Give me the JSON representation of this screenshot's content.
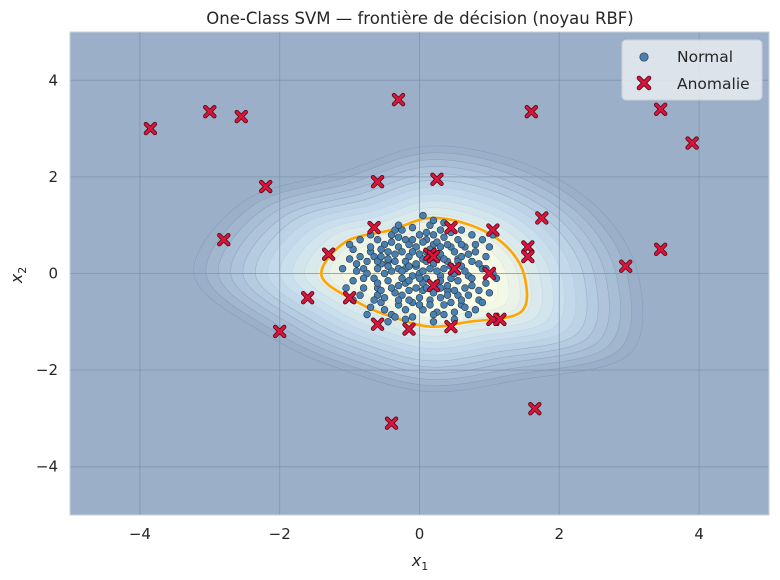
{
  "chart_data": {
    "type": "scatter",
    "title": "One-Class SVM — frontière de décision (noyau RBF)",
    "xlabel": "x",
    "xlabel_sub": "1",
    "ylabel": "x",
    "ylabel_sub": "2",
    "xlim": [
      -5,
      5
    ],
    "ylim": [
      -5,
      5
    ],
    "xticks": [
      -4,
      -2,
      0,
      2,
      4
    ],
    "yticks": [
      -4,
      -2,
      0,
      2,
      4
    ],
    "xtick_labels": [
      "−4",
      "−2",
      "0",
      "2",
      "4"
    ],
    "ytick_labels": [
      "−4",
      "−2",
      "0",
      "2",
      "4"
    ],
    "grid": true,
    "legend_position": "top-right",
    "colors": {
      "background": "#9bb0c8",
      "grid": "#7f92ab",
      "normal": "#4a80b0",
      "normal_edge": "#27384a",
      "anomaly": "#dc143c",
      "anomaly_edge": "#4a0a14",
      "boundary": "#ffa500",
      "contour_outer": "#9bb0c8",
      "contour_inner": "#fbfde6"
    },
    "boundary": {
      "center": [
        0.15,
        -0.05
      ],
      "angles_deg": [
        0,
        30,
        60,
        90,
        120,
        150,
        180,
        210,
        240,
        270,
        300,
        330
      ],
      "radii": [
        1.35,
        1.25,
        1.2,
        1.2,
        1.1,
        1.4,
        1.55,
        1.15,
        1.0,
        1.05,
        1.1,
        1.5
      ]
    },
    "series": [
      {
        "name": "Normal",
        "marker": "circle",
        "points": [
          [
            -0.45,
            0.25
          ],
          [
            -0.6,
            -0.3
          ],
          [
            0.1,
            0.7
          ],
          [
            0.3,
            -0.5
          ],
          [
            -0.2,
            -0.2
          ],
          [
            0.55,
            0.3
          ],
          [
            -0.8,
            0.1
          ],
          [
            0.75,
            -0.25
          ],
          [
            0.0,
            0.0
          ],
          [
            -0.3,
            0.55
          ],
          [
            0.2,
            0.2
          ],
          [
            -0.1,
            -0.6
          ],
          [
            0.45,
            -0.1
          ],
          [
            -0.55,
            -0.6
          ],
          [
            0.65,
            0.55
          ],
          [
            -0.25,
            0.9
          ],
          [
            0.9,
            0.1
          ],
          [
            -0.95,
            -0.15
          ],
          [
            0.05,
            -0.35
          ],
          [
            0.35,
            0.75
          ],
          [
            -0.7,
            0.45
          ],
          [
            0.6,
            -0.65
          ],
          [
            -0.4,
            -0.85
          ],
          [
            0.15,
            1.0
          ],
          [
            -1.0,
            0.3
          ],
          [
            1.0,
            -0.4
          ],
          [
            -0.15,
            0.35
          ],
          [
            0.25,
            -0.8
          ],
          [
            -0.6,
            0.7
          ],
          [
            0.8,
            0.6
          ],
          [
            -0.85,
            -0.45
          ],
          [
            0.5,
            0.0
          ],
          [
            -0.05,
            0.55
          ],
          [
            0.4,
            -0.35
          ],
          [
            -0.35,
            -0.4
          ],
          [
            0.1,
            -0.1
          ],
          [
            -0.2,
            0.1
          ],
          [
            0.3,
            0.4
          ],
          [
            -0.5,
            0.0
          ],
          [
            0.7,
            -0.05
          ],
          [
            -0.65,
            -0.1
          ],
          [
            0.05,
            0.3
          ],
          [
            0.55,
            -0.45
          ],
          [
            -0.3,
            -0.65
          ],
          [
            0.2,
            0.6
          ],
          [
            -0.75,
            0.25
          ],
          [
            0.85,
            -0.55
          ],
          [
            -0.1,
            -0.9
          ],
          [
            0.45,
            0.55
          ],
          [
            -0.45,
            0.45
          ],
          [
            0.0,
            0.8
          ],
          [
            -0.9,
            0.05
          ],
          [
            0.95,
            0.35
          ],
          [
            0.15,
            -0.55
          ],
          [
            -0.25,
            -0.1
          ],
          [
            0.35,
            0.1
          ],
          [
            -0.55,
            0.2
          ],
          [
            0.6,
            0.15
          ],
          [
            -0.15,
            -0.35
          ],
          [
            0.25,
            -0.2
          ],
          [
            -0.4,
            0.05
          ],
          [
            0.05,
            -0.75
          ],
          [
            -0.7,
            -0.7
          ],
          [
            0.75,
            0.8
          ],
          [
            -0.2,
            0.7
          ],
          [
            0.5,
            -0.8
          ],
          [
            -0.95,
            0.5
          ],
          [
            1.05,
            0.0
          ],
          [
            0.3,
            0.9
          ],
          [
            -0.6,
            -0.45
          ],
          [
            0.1,
            0.45
          ],
          [
            -0.35,
            0.25
          ],
          [
            0.65,
            -0.3
          ],
          [
            -0.05,
            0.15
          ],
          [
            0.4,
            0.25
          ],
          [
            -0.8,
            -0.3
          ],
          [
            0.85,
            0.2
          ],
          [
            -0.3,
            -0.25
          ],
          [
            0.2,
            -0.4
          ],
          [
            -0.5,
            0.6
          ],
          [
            0.55,
            0.7
          ],
          [
            -0.15,
            -0.55
          ],
          [
            0.3,
            -0.05
          ],
          [
            -0.65,
            0.35
          ],
          [
            0.7,
            0.4
          ],
          [
            -1.05,
            -0.3
          ],
          [
            0.95,
            -0.2
          ],
          [
            0.0,
            -0.5
          ],
          [
            -0.25,
            0.45
          ],
          [
            0.45,
            -0.6
          ],
          [
            -0.45,
            -0.15
          ],
          [
            0.15,
            0.1
          ],
          [
            -0.1,
            0.95
          ],
          [
            0.6,
            0.9
          ],
          [
            -0.85,
            0.7
          ],
          [
            0.8,
            -0.75
          ],
          [
            -0.35,
            -0.9
          ],
          [
            0.25,
            0.65
          ],
          [
            -0.55,
            -0.35
          ],
          [
            0.5,
            0.45
          ],
          [
            0.05,
            -0.2
          ],
          [
            -0.2,
            -0.75
          ],
          [
            0.35,
            -0.65
          ],
          [
            -0.75,
            0.0
          ],
          [
            0.9,
            0.7
          ],
          [
            -0.4,
            0.8
          ],
          [
            0.7,
            -0.45
          ],
          [
            0.1,
            0.85
          ],
          [
            -0.6,
            0.1
          ],
          [
            0.4,
            -0.25
          ],
          [
            -0.3,
            0.1
          ],
          [
            0.15,
            -0.65
          ],
          [
            -0.85,
            0.35
          ],
          [
            0.65,
            0.05
          ],
          [
            -0.15,
            0.6
          ],
          [
            0.3,
            0.55
          ],
          [
            -0.5,
            -0.75
          ],
          [
            0.55,
            -0.15
          ],
          [
            0.0,
            0.4
          ],
          [
            -0.7,
            0.55
          ],
          [
            0.8,
            0.45
          ],
          [
            -0.25,
            -0.45
          ],
          [
            0.2,
            -0.85
          ],
          [
            -0.95,
            -0.55
          ],
          [
            1.0,
            0.55
          ],
          [
            -0.05,
            -0.3
          ],
          [
            0.45,
            0.85
          ],
          [
            -0.4,
            0.65
          ],
          [
            0.6,
            -0.55
          ],
          [
            0.1,
            0.25
          ],
          [
            -0.6,
            -0.2
          ],
          [
            0.35,
            0.3
          ],
          [
            -0.1,
            -0.05
          ],
          [
            0.25,
            0.05
          ],
          [
            -0.45,
            0.3
          ],
          [
            0.75,
            -0.1
          ],
          [
            -0.3,
            -0.55
          ],
          [
            0.05,
            0.65
          ],
          [
            0.5,
            -0.35
          ],
          [
            -0.8,
            -0.1
          ],
          [
            0.15,
            0.35
          ],
          [
            -0.2,
            0.25
          ],
          [
            0.4,
            -0.45
          ],
          [
            -0.55,
            0.5
          ],
          [
            0.85,
            -0.35
          ],
          [
            -0.1,
            0.45
          ],
          [
            0.3,
            -0.3
          ],
          [
            -0.65,
            -0.55
          ],
          [
            0.6,
            0.6
          ],
          [
            -0.35,
            0.9
          ],
          [
            0.2,
            0.8
          ],
          [
            -0.9,
            0.2
          ],
          [
            0.95,
            0.1
          ],
          [
            0.0,
            -0.65
          ],
          [
            -0.15,
            0.15
          ],
          [
            0.45,
            0.15
          ],
          [
            -0.5,
            -0.5
          ],
          [
            0.55,
            0.25
          ],
          [
            -0.25,
            0.05
          ],
          [
            0.1,
            -0.3
          ],
          [
            -0.7,
            0.8
          ],
          [
            0.7,
            -0.85
          ],
          [
            -0.45,
            -1.0
          ],
          [
            0.35,
            1.05
          ],
          [
            -1.1,
            0.1
          ],
          [
            1.1,
            -0.1
          ],
          [
            0.05,
            1.2
          ],
          [
            -0.3,
            1.0
          ],
          [
            0.2,
            -1.0
          ],
          [
            -0.05,
            0.2
          ],
          [
            0.3,
            -0.15
          ],
          [
            -0.4,
            -0.3
          ],
          [
            0.25,
            0.3
          ],
          [
            -0.15,
            -0.15
          ],
          [
            0.15,
            0.5
          ],
          [
            -0.35,
            0.4
          ],
          [
            0.4,
            0.6
          ],
          [
            -0.6,
            0.25
          ],
          [
            0.65,
            -0.7
          ],
          [
            -0.2,
            -0.95
          ],
          [
            0.05,
            0.05
          ],
          [
            0.5,
            -0.95
          ],
          [
            -0.75,
            -0.85
          ],
          [
            0.9,
            -0.6
          ],
          [
            -1.0,
            0.6
          ],
          [
            1.05,
            0.8
          ],
          [
            0.0,
            -0.1
          ],
          [
            -0.1,
            0.7
          ],
          [
            0.6,
            0.35
          ],
          [
            -0.45,
            0.15
          ],
          [
            0.35,
            -0.85
          ],
          [
            -0.55,
            0.35
          ],
          [
            0.75,
            0.25
          ],
          [
            -0.3,
            0.75
          ],
          [
            0.2,
            1.1
          ]
        ]
      },
      {
        "name": "Anomalie",
        "marker": "x",
        "points": [
          [
            -3.85,
            3.0
          ],
          [
            -3.0,
            3.35
          ],
          [
            -2.55,
            3.25
          ],
          [
            -0.3,
            3.6
          ],
          [
            1.6,
            3.35
          ],
          [
            3.45,
            3.4
          ],
          [
            3.9,
            2.7
          ],
          [
            -2.2,
            1.8
          ],
          [
            -0.6,
            1.9
          ],
          [
            0.25,
            1.95
          ],
          [
            -2.8,
            0.7
          ],
          [
            1.75,
            1.15
          ],
          [
            -0.65,
            0.95
          ],
          [
            0.45,
            0.95
          ],
          [
            1.05,
            0.9
          ],
          [
            1.55,
            0.55
          ],
          [
            1.55,
            0.35
          ],
          [
            3.45,
            0.5
          ],
          [
            2.95,
            0.15
          ],
          [
            -1.3,
            0.4
          ],
          [
            0.15,
            0.4
          ],
          [
            0.2,
            0.35
          ],
          [
            0.5,
            0.1
          ],
          [
            1.0,
            0.0
          ],
          [
            -1.6,
            -0.5
          ],
          [
            -1.0,
            -0.5
          ],
          [
            -2.0,
            -1.2
          ],
          [
            -0.6,
            -1.05
          ],
          [
            -0.15,
            -1.15
          ],
          [
            0.45,
            -1.1
          ],
          [
            1.05,
            -0.95
          ],
          [
            1.15,
            -0.95
          ],
          [
            0.2,
            -0.25
          ],
          [
            1.65,
            -2.8
          ],
          [
            -0.4,
            -3.1
          ]
        ]
      }
    ]
  }
}
